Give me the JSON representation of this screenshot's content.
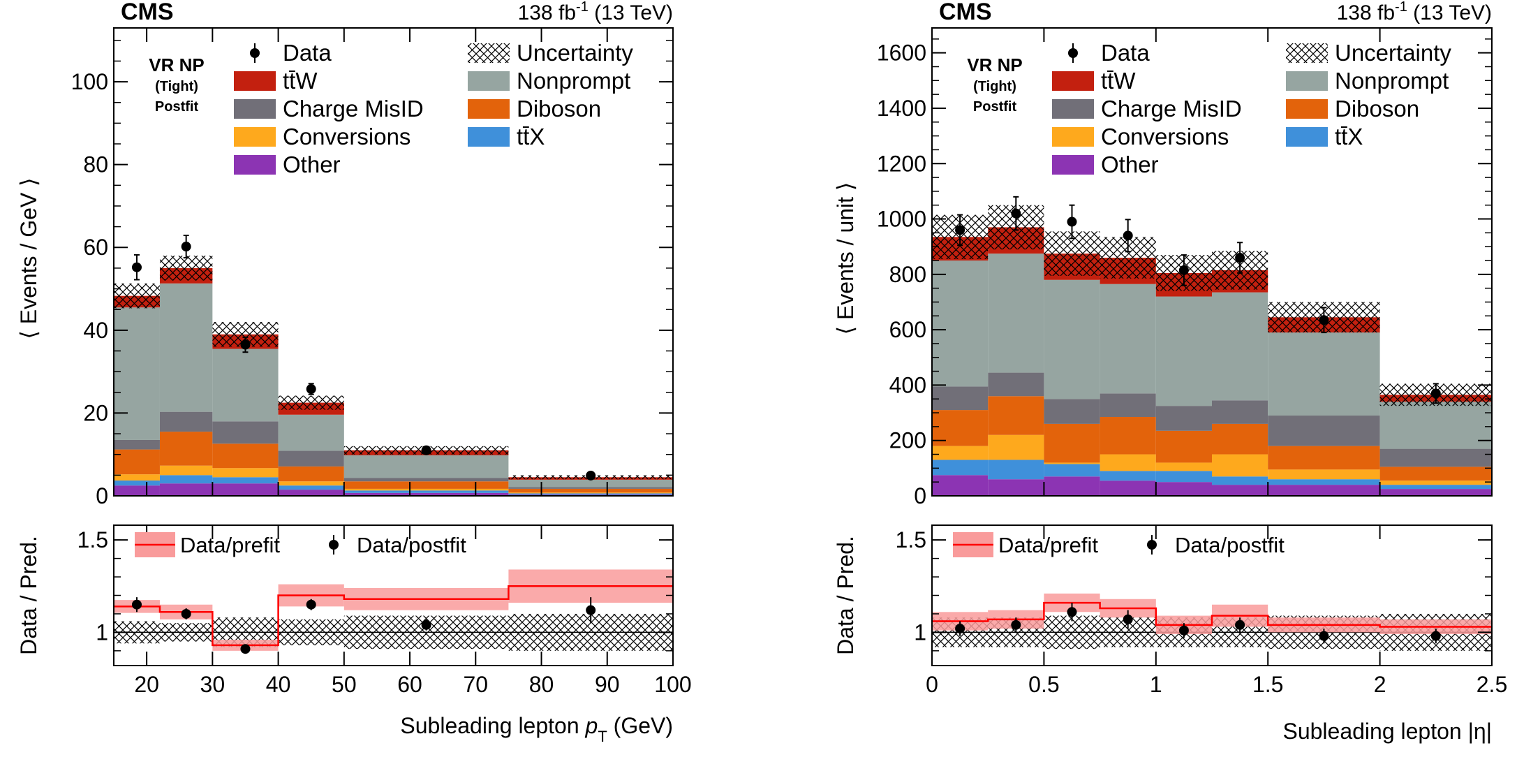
{
  "colors": {
    "ttW": "#c3200f",
    "charge_misid": "#716f78",
    "conversions": "#fea91d",
    "other": "#8c34b3",
    "nonprompt": "#96a5a1",
    "diboson": "#e3630b",
    "ttX": "#3f90da",
    "prefit_band": "#f99b9b",
    "prefit_line": "#ff0000"
  },
  "legend": {
    "data": "Data",
    "uncertainty": "Uncertainty",
    "ttW": "tt̄W",
    "nonprompt": "Nonprompt",
    "charge_misid": "Charge MisID",
    "diboson": "Diboson",
    "conversions": "Conversions",
    "ttX": "tt̄X",
    "other": "Other"
  },
  "ratio_legend": {
    "prefit": "Data/prefit",
    "postfit": "Data/postfit"
  },
  "region_label": {
    "line1": "VR NP",
    "line2": "(Tight)",
    "line3": "Postfit"
  },
  "chart_data": [
    {
      "type": "bar",
      "stacked": true,
      "experiment": "CMS",
      "lumi_main": "138 fb",
      "lumi_sup": "-1",
      "lumi_energy": " (13 TeV)",
      "ylabel": "⟨ Events / GeV ⟩",
      "xlabel_main": "Subleading lepton ",
      "xlabel_var": "p",
      "xlabel_sub": "T",
      "xlabel_unit": " (GeV)",
      "ratio_ylabel": "Data / Pred.",
      "xlim": [
        15,
        100
      ],
      "ylim": [
        0,
        113
      ],
      "yticks": [
        0,
        20,
        40,
        60,
        80,
        100
      ],
      "xticks": [
        20,
        30,
        40,
        50,
        60,
        70,
        80,
        90,
        100
      ],
      "ratio_ylim": [
        0.82,
        1.58
      ],
      "ratio_yticks": [
        1,
        1.5
      ],
      "edges": [
        15,
        22,
        30,
        40,
        50,
        75,
        100
      ],
      "series": [
        {
          "name": "other",
          "values": [
            2.5,
            3.0,
            3.0,
            1.5,
            0.7,
            0.3
          ]
        },
        {
          "name": "ttX",
          "values": [
            1.2,
            2.0,
            1.5,
            1.0,
            0.6,
            0.3
          ]
        },
        {
          "name": "conversions",
          "values": [
            1.5,
            2.3,
            2.2,
            1.0,
            0.4,
            0.2
          ]
        },
        {
          "name": "diboson",
          "values": [
            6.0,
            8.2,
            5.9,
            3.6,
            1.8,
            0.9
          ]
        },
        {
          "name": "charge_misid",
          "values": [
            2.3,
            4.8,
            5.4,
            3.8,
            0.8,
            0.4
          ]
        },
        {
          "name": "nonprompt",
          "values": [
            32.0,
            31.0,
            17.5,
            8.7,
            5.5,
            1.8
          ]
        },
        {
          "name": "ttW",
          "values": [
            2.8,
            3.7,
            3.5,
            2.9,
            1.2,
            0.6
          ]
        }
      ],
      "uncertainty": [
        3.0,
        3.0,
        3.0,
        1.7,
        1.0,
        0.5
      ],
      "data": {
        "x": [
          18.5,
          26,
          35,
          45,
          62.5,
          87.5
        ],
        "y": [
          55.2,
          60.2,
          36.5,
          25.8,
          11.0,
          4.9
        ],
        "err": [
          3.0,
          2.7,
          1.8,
          1.3,
          0.6,
          0.4
        ]
      },
      "ratio": {
        "prefit": [
          1.14,
          1.11,
          0.93,
          1.2,
          1.18,
          1.25
        ],
        "prefit_err": [
          0.035,
          0.04,
          0.03,
          0.06,
          0.06,
          0.09
        ],
        "postfit": {
          "y": [
            1.15,
            1.1,
            0.91,
            1.15,
            1.04,
            1.12
          ],
          "err": [
            0.04,
            0.03,
            0.02,
            0.03,
            0.03,
            0.07
          ]
        },
        "unc": [
          0.06,
          0.05,
          0.08,
          0.07,
          0.09,
          0.1
        ]
      }
    },
    {
      "type": "bar",
      "stacked": true,
      "experiment": "CMS",
      "lumi_main": "138 fb",
      "lumi_sup": "-1",
      "lumi_energy": " (13 TeV)",
      "ylabel": "⟨ Events / unit ⟩",
      "xlabel_main": "Subleading lepton |η|",
      "xlabel_var": "",
      "xlabel_sub": "",
      "xlabel_unit": "",
      "ratio_ylabel": "Data / Pred.",
      "xlim": [
        0,
        2.5
      ],
      "ylim": [
        0,
        1690
      ],
      "yticks": [
        0,
        200,
        400,
        600,
        800,
        1000,
        1200,
        1400,
        1600
      ],
      "xticks": [
        0,
        0.5,
        1,
        1.5,
        2,
        2.5
      ],
      "ratio_ylim": [
        0.82,
        1.58
      ],
      "ratio_yticks": [
        1,
        1.5
      ],
      "edges": [
        0,
        0.25,
        0.5,
        0.75,
        1.0,
        1.25,
        1.5,
        2.0,
        2.5
      ],
      "series": [
        {
          "name": "other",
          "values": [
            75,
            60,
            70,
            55,
            50,
            40,
            40,
            25
          ]
        },
        {
          "name": "ttX",
          "values": [
            55,
            70,
            45,
            35,
            40,
            30,
            20,
            15
          ]
        },
        {
          "name": "conversions",
          "values": [
            50,
            90,
            5,
            60,
            30,
            80,
            35,
            15
          ]
        },
        {
          "name": "diboson",
          "values": [
            130,
            140,
            140,
            135,
            115,
            110,
            85,
            50
          ]
        },
        {
          "name": "charge_misid",
          "values": [
            85,
            85,
            90,
            85,
            90,
            85,
            110,
            65
          ]
        },
        {
          "name": "nonprompt",
          "values": [
            455,
            430,
            430,
            395,
            395,
            390,
            300,
            170
          ]
        },
        {
          "name": "ttW",
          "values": [
            85,
            95,
            95,
            95,
            85,
            80,
            55,
            25
          ]
        }
      ],
      "uncertainty": [
        80,
        80,
        80,
        75,
        65,
        70,
        55,
        40
      ],
      "data": {
        "x": [
          0.125,
          0.375,
          0.625,
          0.875,
          1.125,
          1.375,
          1.75,
          2.25
        ],
        "y": [
          960,
          1020,
          990,
          940,
          815,
          860,
          635,
          370
        ],
        "err": [
          55,
          60,
          60,
          58,
          55,
          55,
          45,
          35
        ]
      },
      "ratio": {
        "prefit": [
          1.06,
          1.07,
          1.16,
          1.13,
          1.04,
          1.09,
          1.04,
          1.03
        ],
        "prefit_err": [
          0.05,
          0.05,
          0.05,
          0.05,
          0.05,
          0.06,
          0.04,
          0.04
        ],
        "postfit": {
          "y": [
            1.02,
            1.04,
            1.11,
            1.07,
            1.01,
            1.04,
            0.98,
            0.98
          ],
          "err": [
            0.04,
            0.04,
            0.05,
            0.05,
            0.04,
            0.04,
            0.04,
            0.04
          ]
        },
        "unc": [
          0.08,
          0.08,
          0.09,
          0.08,
          0.08,
          0.08,
          0.09,
          0.1
        ]
      }
    }
  ]
}
